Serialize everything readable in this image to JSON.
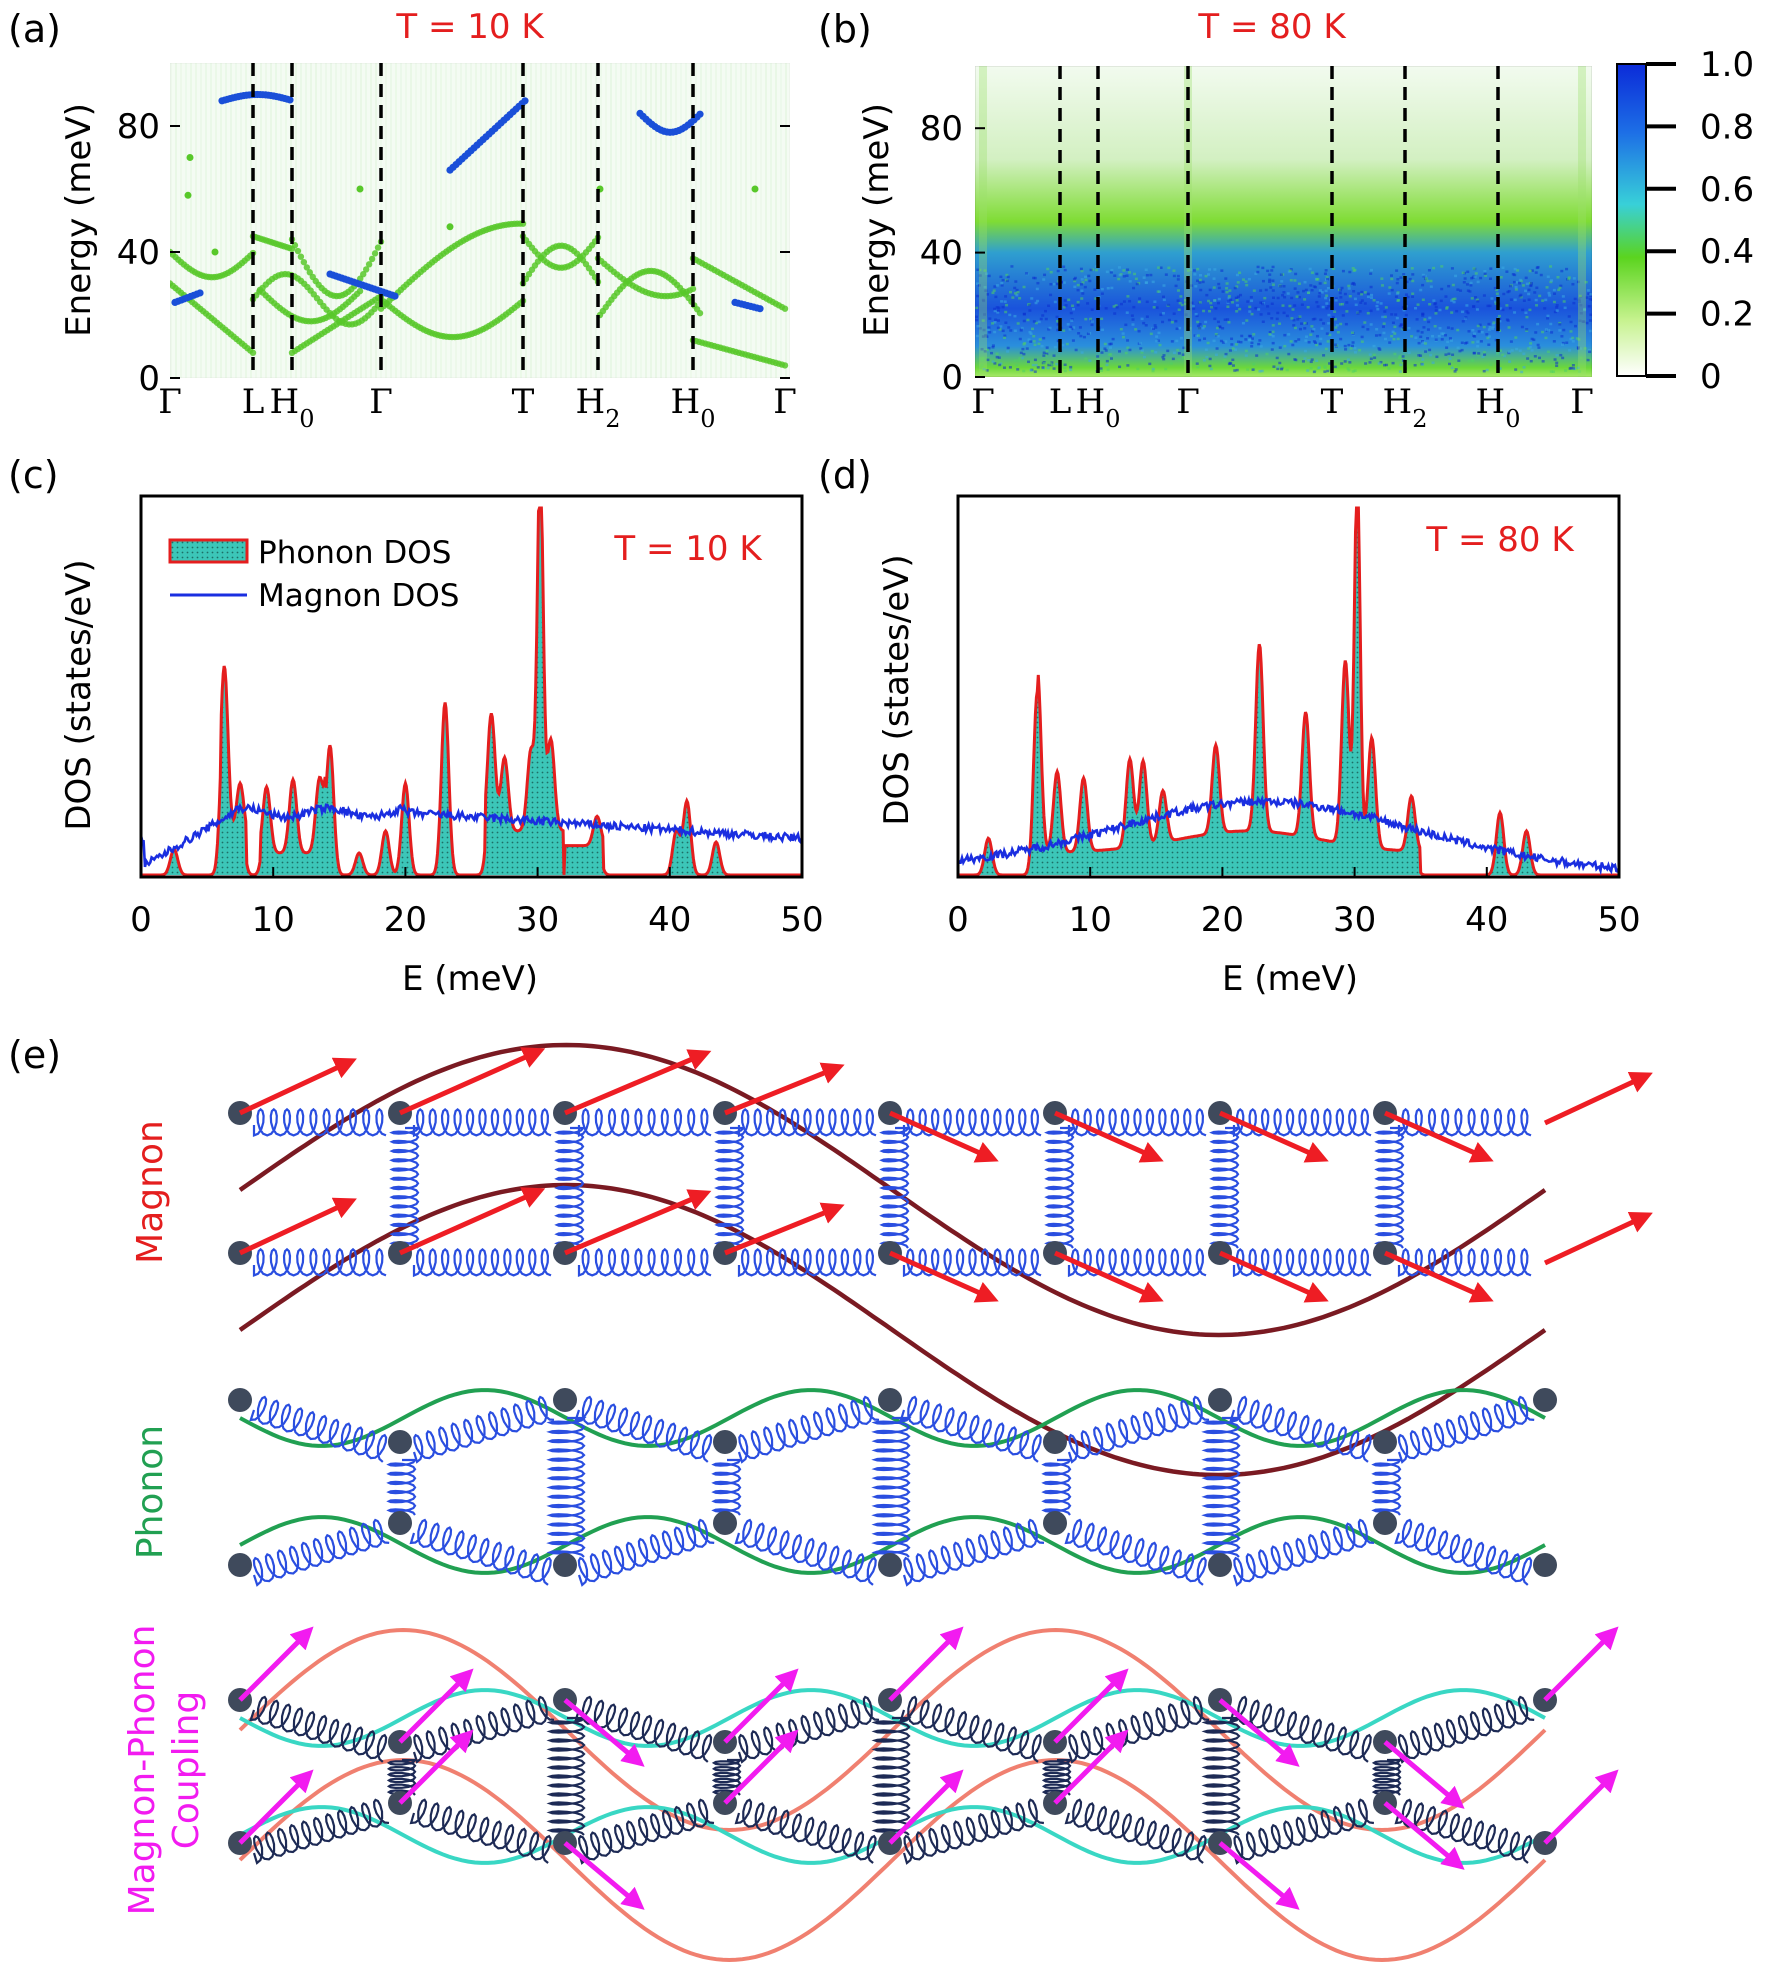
{
  "panels": {
    "a": {
      "label": "(a)",
      "temp": "T = 10 K",
      "ylabel": "Energy (meV)"
    },
    "b": {
      "label": "(b)",
      "temp": "T = 80 K",
      "ylabel": "Energy (meV)"
    },
    "c": {
      "label": "(c)",
      "temp": "T = 10 K",
      "ylabel": "DOS (states/eV)",
      "xlabel": "E (meV)"
    },
    "d": {
      "label": "(d)",
      "temp": "T = 80 K",
      "ylabel": "DOS (states/eV)",
      "xlabel": "E (meV)"
    },
    "e": {
      "label": "(e)",
      "row_labels": [
        "Magnon",
        "Phonon",
        "Magnon-Phonon",
        "Coupling"
      ]
    }
  },
  "legend": {
    "phonon": "Phonon DOS",
    "magnon": "Magnon DOS"
  },
  "kpath": [
    "Γ",
    "L",
    "H0",
    "Γ",
    "T",
    "H2",
    "H0",
    "Γ"
  ],
  "colors": {
    "red": "#e41e1e",
    "blue": "#1a2ee0",
    "dos_fill": "#3cc6b8",
    "magnon_wave": "#7a1a22",
    "phonon_wave": "#21a052",
    "spring": "#2a4ee0",
    "dark_spring": "#1d2a55",
    "arrow": "#ee1d24",
    "magenta": "#f21bf0",
    "salmon": "#f08070",
    "teal_wave": "#39d7c4",
    "node": "#3f4a5c"
  },
  "chart_data": [
    {
      "type": "heatmap",
      "id": "a",
      "title": "T = 10 K",
      "ylabel": "Energy (meV)",
      "ylim": [
        0,
        100
      ],
      "yticks": [
        0,
        40,
        80
      ],
      "x_categories": [
        "Γ",
        "L",
        "H0",
        "Γ",
        "T",
        "H2",
        "H0",
        "Γ"
      ]
    },
    {
      "type": "heatmap",
      "id": "b",
      "title": "T = 80 K",
      "ylabel": "Energy (meV)",
      "ylim": [
        0,
        100
      ],
      "yticks": [
        0,
        40,
        80
      ],
      "x_categories": [
        "Γ",
        "L",
        "H0",
        "Γ",
        "T",
        "H2",
        "H0",
        "Γ"
      ],
      "colorbar": {
        "ticks": [
          "1.0",
          "0.8",
          "0.6",
          "0.4",
          "0.2",
          "0"
        ],
        "range": [
          0,
          1
        ]
      }
    },
    {
      "type": "area",
      "id": "c",
      "title": "T = 10 K",
      "xlabel": "E (meV)",
      "ylabel": "DOS (states/eV)",
      "xlim": [
        0,
        50
      ],
      "xticks": [
        0,
        10,
        20,
        30,
        40,
        50
      ],
      "series": [
        {
          "name": "Phonon DOS",
          "peaks": [
            [
              2.5,
              0.07
            ],
            [
              6.3,
              0.47
            ],
            [
              7.5,
              0.15
            ],
            [
              9.5,
              0.18
            ],
            [
              11.5,
              0.2
            ],
            [
              13.5,
              0.2
            ],
            [
              14.3,
              0.35
            ],
            [
              16.5,
              0.06
            ],
            [
              18.5,
              0.12
            ],
            [
              20.0,
              0.25
            ],
            [
              23.0,
              0.47
            ],
            [
              26.5,
              0.32
            ],
            [
              27.5,
              0.2
            ],
            [
              29.5,
              0.22
            ],
            [
              30.2,
              1.0
            ],
            [
              31.0,
              0.25
            ],
            [
              34.5,
              0.08
            ],
            [
              40.5,
              0.12
            ],
            [
              41.3,
              0.2
            ],
            [
              43.5,
              0.09
            ]
          ]
        },
        {
          "name": "Magnon DOS",
          "shape": "rises to ~0.17 by 7 meV, ~0.18 plateau to 20 meV, slowly falling to ~0.1 at 50 meV"
        }
      ]
    },
    {
      "type": "area",
      "id": "d",
      "title": "T = 80 K",
      "xlabel": "E (meV)",
      "ylabel": "DOS (states/eV)",
      "xlim": [
        0,
        50
      ],
      "xticks": [
        0,
        10,
        20,
        30,
        40,
        50
      ],
      "series": [
        {
          "name": "Phonon DOS",
          "peaks": [
            [
              2.3,
              0.1
            ],
            [
              6.0,
              0.5
            ],
            [
              7.5,
              0.22
            ],
            [
              9.5,
              0.2
            ],
            [
              13.0,
              0.24
            ],
            [
              14.0,
              0.23
            ],
            [
              15.5,
              0.14
            ],
            [
              19.5,
              0.24
            ],
            [
              22.8,
              0.51
            ],
            [
              26.3,
              0.34
            ],
            [
              29.3,
              0.5
            ],
            [
              30.2,
              1.0
            ],
            [
              31.3,
              0.3
            ],
            [
              34.3,
              0.15
            ],
            [
              41.0,
              0.17
            ],
            [
              43.0,
              0.12
            ]
          ]
        },
        {
          "name": "Magnon DOS",
          "shape": "dome peaking ~0.2 near 23 meV, falling to ~0.02 at 50 meV"
        }
      ]
    }
  ]
}
